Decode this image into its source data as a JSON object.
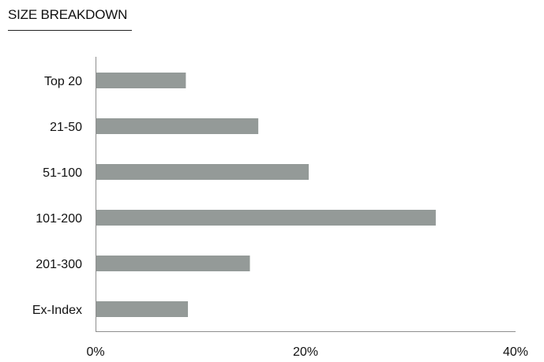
{
  "header": {
    "title": "SIZE BREAKDOWN"
  },
  "chart_data": {
    "type": "bar",
    "orientation": "horizontal",
    "title": "SIZE BREAKDOWN",
    "categories": [
      "Top 20",
      "21-50",
      "51-100",
      "101-200",
      "201-300",
      "Ex-Index"
    ],
    "values": [
      8.6,
      15.5,
      20.3,
      32.4,
      14.7,
      8.8
    ],
    "unit": "%",
    "xlim": [
      0,
      40
    ],
    "xticks": [
      0,
      20,
      40
    ],
    "xtick_labels": [
      "0%",
      "20%",
      "40%"
    ],
    "bar_color": "#949a98",
    "grid": false,
    "legend": "none"
  }
}
